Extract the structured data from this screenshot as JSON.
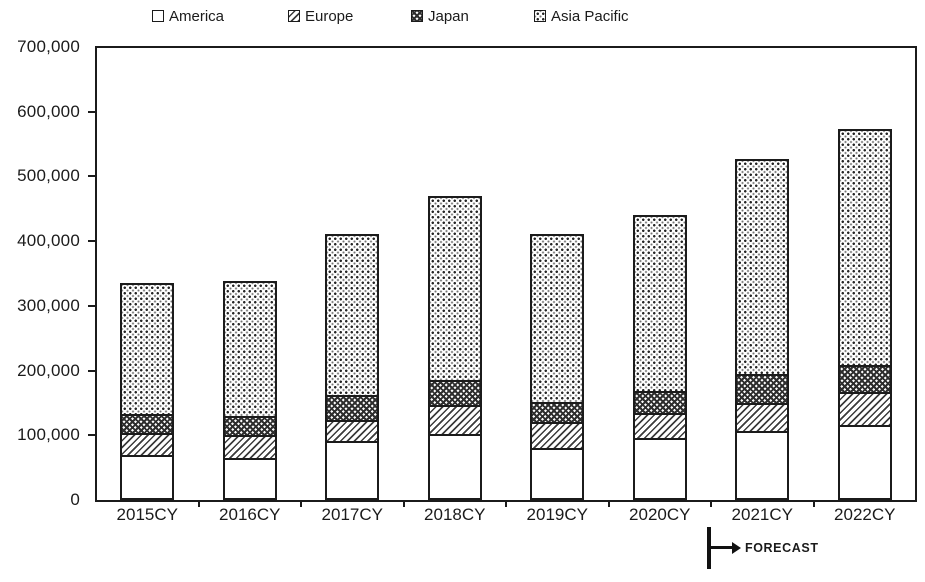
{
  "colors": {
    "ink": "#1b1b1b",
    "background": "#ffffff"
  },
  "chart_data": {
    "type": "bar",
    "stacked": true,
    "title": "",
    "xlabel": "",
    "ylabel": "",
    "categories": [
      "2015CY",
      "2016CY",
      "2017CY",
      "2018CY",
      "2019CY",
      "2020CY",
      "2021CY",
      "2022CY"
    ],
    "series": [
      {
        "name": "America",
        "pattern": "plain",
        "values": [
          70000,
          65000,
          91000,
          102000,
          80000,
          96000,
          106000,
          116000
        ]
      },
      {
        "name": "Europe",
        "pattern": "diagonal-hatch",
        "values": [
          33000,
          35000,
          33000,
          45000,
          40000,
          38000,
          44000,
          51000
        ]
      },
      {
        "name": "Japan",
        "pattern": "diamond-crosshatch",
        "values": [
          30000,
          30000,
          39000,
          39000,
          32000,
          34000,
          44000,
          42000
        ]
      },
      {
        "name": "Asia Pacific",
        "pattern": "dots",
        "values": [
          203000,
          208000,
          248000,
          284000,
          259000,
          273000,
          333000,
          364000
        ]
      }
    ],
    "ylim": [
      0,
      700000
    ],
    "ytick_interval": 100000,
    "ytick_labels": [
      "0",
      "100,000",
      "200,000",
      "300,000",
      "400,000",
      "500,000",
      "600,000",
      "700,000"
    ],
    "grid": false,
    "legend_position": "top",
    "annotation": {
      "label": "FORECAST",
      "starts_at_category": "2021CY"
    }
  }
}
